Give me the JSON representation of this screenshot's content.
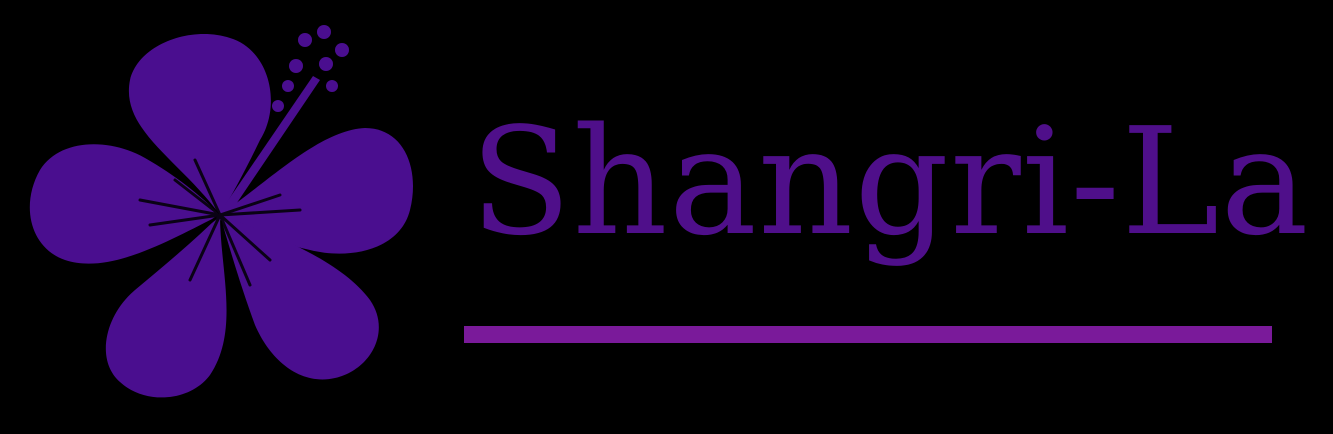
{
  "logo": {
    "brand_name": "Shangri-La",
    "flower_icon": "hibiscus-icon",
    "colors": {
      "flower": "#4a0e8f",
      "text": "#4f0f8a",
      "underline": "#7a1a9a",
      "background": "#000000"
    }
  }
}
